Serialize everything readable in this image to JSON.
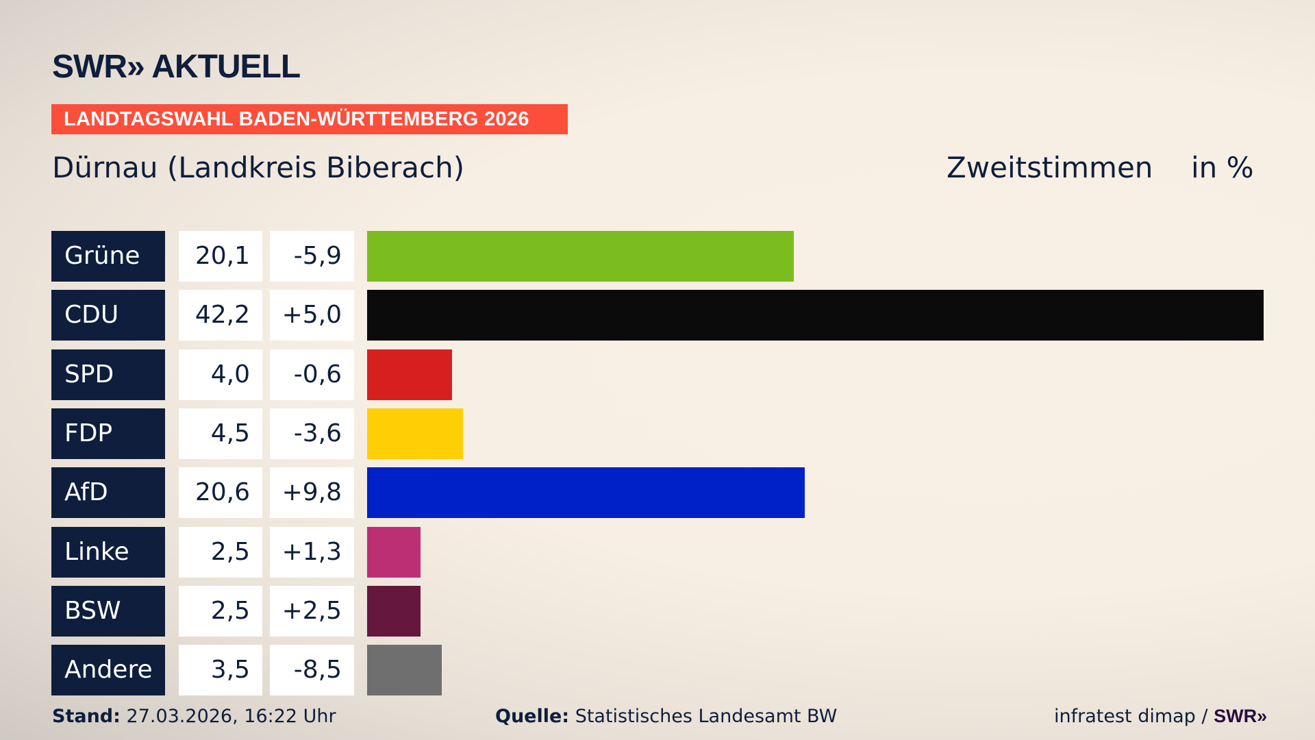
{
  "header": {
    "logo": "SWR» AKTUELL",
    "banner": "LANDTAGSWAHL BADEN-WÜRTTEMBERG 2026",
    "subtitle": "Dürnau (Landkreis Biberach)",
    "vote_type": "Zweitstimmen",
    "unit": "in %"
  },
  "chart_data": {
    "type": "bar",
    "orientation": "horizontal",
    "categories": [
      "Grüne",
      "CDU",
      "SPD",
      "FDP",
      "AfD",
      "Linke",
      "BSW",
      "Andere"
    ],
    "values": [
      20.1,
      42.2,
      4.0,
      4.5,
      20.6,
      2.5,
      2.5,
      3.5
    ],
    "labels": [
      "20,1",
      "42,2",
      "4,0",
      "4,5",
      "20,6",
      "2,5",
      "2,5",
      "3,5"
    ],
    "changes": [
      "-5,9",
      "+5,0",
      "-0,6",
      "-3,6",
      "+9,8",
      "+1,3",
      "+2,5",
      "-8,5"
    ],
    "colors": [
      "#7bbd1e",
      "#0b0b0b",
      "#d7201e",
      "#ffcf06",
      "#0020c8",
      "#bd2f74",
      "#65173d",
      "#6f6f6f"
    ]
  },
  "footer": {
    "stand_label": "Stand:",
    "stand_value": "27.03.2026, 16:22 Uhr",
    "source_label": "Quelle:",
    "source_value": "Statistisches Landesamt BW",
    "credit": "infratest dimap /",
    "credit_logo": "SWR»"
  }
}
